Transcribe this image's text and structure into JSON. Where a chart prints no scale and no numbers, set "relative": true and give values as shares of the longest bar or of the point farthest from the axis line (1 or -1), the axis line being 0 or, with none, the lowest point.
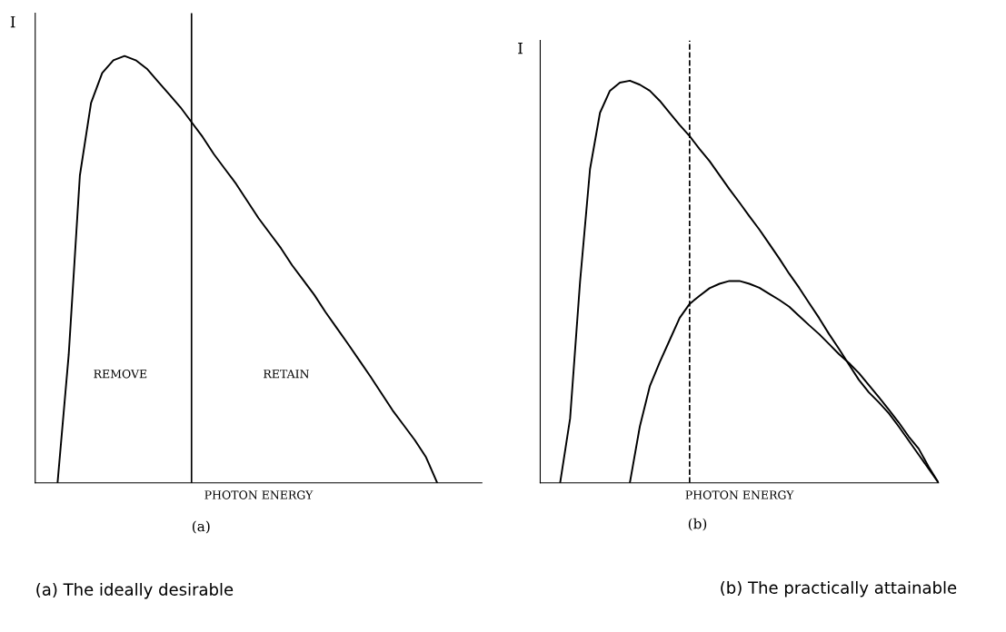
{
  "chart_data": [
    {
      "type": "line",
      "xlabel": "PHOTON ENERGY",
      "ylabel": "I",
      "relative": true,
      "legend": false,
      "categories": [
        null,
        null,
        null,
        null,
        null,
        null,
        null,
        null,
        null,
        null,
        null,
        null,
        null,
        null,
        null,
        null,
        null,
        null,
        null,
        null,
        null,
        null,
        null,
        null,
        null,
        null,
        null,
        null,
        null,
        null,
        null,
        null,
        null,
        null,
        null,
        null,
        null,
        null,
        null,
        null,
        null
      ],
      "series": [
        {
          "color": "#000000",
          "values": [
            null,
            null,
            0,
            0.3,
            0.72,
            0.89,
            0.96,
            0.99,
            1.0,
            0.99,
            0.97,
            0.94,
            0.91,
            0.88,
            0.845,
            0.81,
            0.77,
            0.735,
            0.7,
            0.66,
            0.62,
            0.585,
            0.55,
            0.51,
            0.475,
            0.44,
            0.4,
            0.363,
            0.326,
            0.288,
            0.25,
            0.21,
            0.17,
            0.135,
            0.1,
            0.06,
            0,
            null,
            null,
            null,
            null
          ]
        }
      ],
      "annotations": [
        "REMOVE",
        "RETAIN",
        "(a)",
        "(a) The ideally desirable"
      ]
    },
    {
      "type": "line",
      "xlabel": "PHOTON ENERGY",
      "ylabel": "I",
      "relative": true,
      "legend": false,
      "categories": [
        null,
        null,
        null,
        null,
        null,
        null,
        null,
        null,
        null,
        null,
        null,
        null,
        null,
        null,
        null,
        null,
        null,
        null,
        null,
        null,
        null,
        null,
        null,
        null,
        null,
        null,
        null,
        null,
        null,
        null,
        null,
        null,
        null,
        null,
        null,
        null,
        null,
        null,
        null,
        null,
        null
      ],
      "series": [
        {
          "color": "#000000",
          "values": [
            null,
            null,
            0,
            0.16,
            0.5,
            0.78,
            0.92,
            0.975,
            0.995,
            1.0,
            0.99,
            0.975,
            0.95,
            0.92,
            0.89,
            0.862,
            0.83,
            0.8,
            0.765,
            0.73,
            0.697,
            0.663,
            0.63,
            0.594,
            0.558,
            0.52,
            0.485,
            0.447,
            0.41,
            0.37,
            0.333,
            0.294,
            0.256,
            0.225,
            0.2,
            0.173,
            0.14,
            0.105,
            0.07,
            0.035,
            0
          ]
        },
        {
          "color": "#000000",
          "values": [
            null,
            null,
            null,
            null,
            null,
            null,
            null,
            null,
            null,
            0,
            0.14,
            0.24,
            0.3,
            0.355,
            0.41,
            0.445,
            0.465,
            0.484,
            0.495,
            0.502,
            0.502,
            0.495,
            0.485,
            0.47,
            0.455,
            0.438,
            0.415,
            0.392,
            0.37,
            0.345,
            0.32,
            0.298,
            0.273,
            0.243,
            0.213,
            0.182,
            0.15,
            0.115,
            0.085,
            0.04,
            0
          ]
        }
      ],
      "annotations": [
        "(b)",
        "(b) The practically attainable"
      ]
    }
  ]
}
